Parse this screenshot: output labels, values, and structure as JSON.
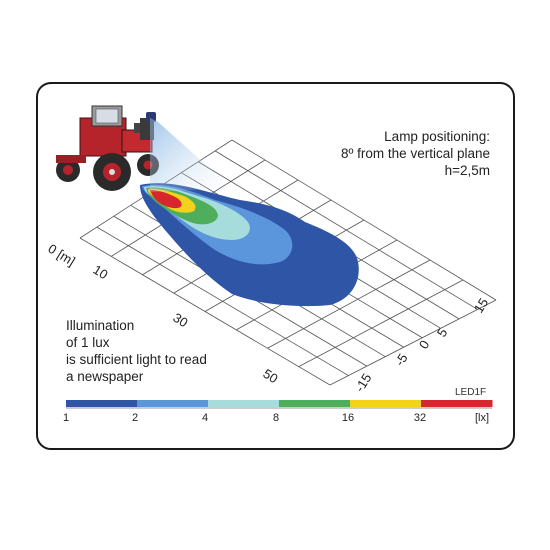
{
  "lamp_info": {
    "line1": "Lamp positioning:",
    "line2": "8º from the vertical plane",
    "line3": "h=2,5m"
  },
  "illumination_note": {
    "line1": "Illumination",
    "line2": "of 1 lux",
    "line3": "is sufficient light to read",
    "line4": "a newspaper"
  },
  "model_label": "LED1F",
  "distance_axis": {
    "labels": [
      "0 [m]",
      "10",
      "30",
      "50"
    ]
  },
  "lateral_axis": {
    "labels": [
      "15",
      "5",
      "0",
      "-5",
      "-15"
    ]
  },
  "scale": {
    "ticks": [
      "1",
      "2",
      "4",
      "8",
      "16",
      "32",
      "[lx]"
    ],
    "colors": [
      "#2f55a7",
      "#5b95dc",
      "#a7dcdc",
      "#4fae5b",
      "#f2d21d",
      "#d8262f"
    ]
  },
  "light_levels_lx": [
    1,
    2,
    4,
    8,
    16,
    32
  ]
}
